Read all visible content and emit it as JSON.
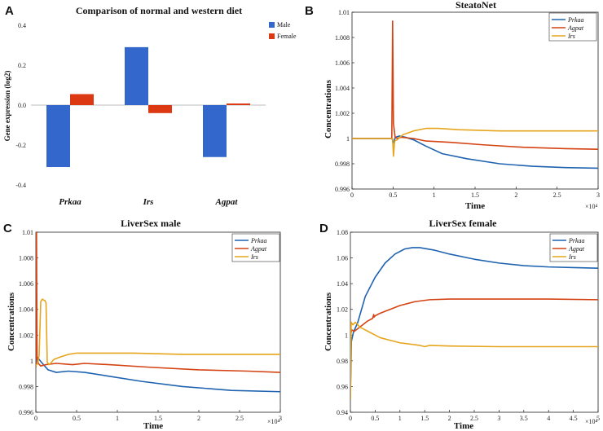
{
  "colors": {
    "blue": "#1f63b0",
    "red": "#d44313",
    "yellow": "#e6a51c",
    "barBlue": "#3367cc",
    "barRed": "#dc3912"
  },
  "chart_data": [
    {
      "panel": "A",
      "type": "bar",
      "title": "Comparison of normal and western diet",
      "ylabel": "Gene expression (log2)",
      "xlabel": "",
      "categories": [
        "Prkaa",
        "Irs",
        "Agpat"
      ],
      "series": [
        {
          "name": "Male",
          "values": [
            -0.31,
            0.29,
            -0.26
          ]
        },
        {
          "name": "Female",
          "values": [
            0.055,
            -0.04,
            0.008
          ]
        }
      ],
      "ylim": [
        -0.42,
        0.42
      ],
      "yticks": [
        "0.4",
        "0.2",
        "0.0",
        "-0.2",
        "-0.4"
      ],
      "legend": "top-right"
    },
    {
      "panel": "B",
      "type": "line",
      "title": "SteatoNet",
      "xlabel": "Time",
      "ylabel": "Concentrations",
      "xlim": [
        0,
        30000
      ],
      "ylim": [
        0.996,
        1.01
      ],
      "xticks": [
        "0",
        "0.5",
        "1",
        "1.5",
        "2",
        "2.5",
        "3"
      ],
      "yticks": [
        "1.01",
        "1.008",
        "1.006",
        "1.004",
        "1.002",
        "1",
        "0.998",
        "0.996"
      ],
      "xexp": "×10⁴",
      "legend": "top-right",
      "series": [
        {
          "name": "Prkaa",
          "x": [
            0,
            4900,
            5000,
            5300,
            5800,
            6500,
            7500,
            9000,
            11000,
            14000,
            18000,
            22000,
            26000,
            30000
          ],
          "y": [
            1.0,
            1.0,
            0.9996,
            1.0001,
            1.0002,
            1.0001,
            0.9999,
            0.9994,
            0.9988,
            0.9984,
            0.998,
            0.9978,
            0.9977,
            0.99765
          ]
        },
        {
          "name": "Agpat",
          "x": [
            0,
            4850,
            4950,
            5050,
            5250,
            5500,
            6000,
            7500,
            9000,
            12000,
            16000,
            21000,
            26000,
            30000
          ],
          "y": [
            1.0,
            1.0,
            1.0093,
            1.0012,
            1.0001,
            1.0,
            1.0001,
            1.0,
            0.9998,
            0.9997,
            0.9995,
            0.9993,
            0.9992,
            0.99915
          ]
        },
        {
          "name": "Irs",
          "x": [
            0,
            4950,
            5050,
            5200,
            5500,
            6200,
            7500,
            9000,
            10500,
            13000,
            18000,
            24000,
            30000
          ],
          "y": [
            1.0,
            1.0,
            0.9986,
            0.9998,
            0.9999,
            1.0003,
            1.0006,
            1.0008,
            1.0008,
            1.0007,
            1.0006,
            1.0006,
            1.0006
          ]
        }
      ]
    },
    {
      "panel": "C",
      "type": "line",
      "title": "LiverSex male",
      "xlabel": "Time",
      "ylabel": "Concentrations",
      "xlim": [
        0,
        30000
      ],
      "ylim": [
        0.996,
        1.01
      ],
      "xticks": [
        "0",
        "0.5",
        "1",
        "1.5",
        "2",
        "2.5",
        "3"
      ],
      "yticks": [
        "1.01",
        "1.008",
        "1.006",
        "1.004",
        "1.002",
        "1",
        "0.998",
        "0.996"
      ],
      "xexp": "×10⁴",
      "legend": "top-right",
      "series": [
        {
          "name": "Prkaa",
          "x": [
            0,
            150,
            400,
            800,
            1500,
            2500,
            4000,
            6000,
            9000,
            13000,
            18000,
            24000,
            30000
          ],
          "y": [
            0.9996,
            1.0003,
            1.0001,
            0.9998,
            0.9993,
            0.9991,
            0.9992,
            0.9991,
            0.9988,
            0.9984,
            0.998,
            0.9977,
            0.9976
          ]
        },
        {
          "name": "Agpat",
          "x": [
            0,
            80,
            150,
            300,
            600,
            1200,
            2500,
            4500,
            6000,
            9000,
            14000,
            20000,
            26000,
            30000
          ],
          "y": [
            0.9995,
            1.0101,
            1.0003,
            0.9998,
            0.9996,
            0.9997,
            0.9998,
            0.9997,
            0.9998,
            0.9997,
            0.9995,
            0.9993,
            0.9992,
            0.9991
          ]
        },
        {
          "name": "Irs",
          "x": [
            0,
            200,
            400,
            600,
            800,
            1000,
            1100,
            1250,
            1400,
            1600,
            1800,
            2200,
            3000,
            4000,
            5000,
            8000,
            12000,
            18000,
            24000,
            30000
          ],
          "y": [
            0.9996,
            0.9998,
            1.0004,
            1.0046,
            1.0048,
            1.0047,
            1.0047,
            1.0045,
            0.9999,
            0.9997,
            0.9998,
            1.0001,
            1.0003,
            1.0005,
            1.0006,
            1.0006,
            1.0006,
            1.0005,
            1.0005,
            1.0005
          ]
        }
      ]
    },
    {
      "panel": "D",
      "type": "line",
      "title": "LiverSex female",
      "xlabel": "Time",
      "ylabel": "Concentrations",
      "xlim": [
        0,
        50000
      ],
      "ylim": [
        0.94,
        1.08
      ],
      "xticks": [
        "0",
        "0.5",
        "1",
        "1.5",
        "2",
        "2.5",
        "3",
        "3.5",
        "4",
        "4.5",
        "5"
      ],
      "yticks": [
        "1.08",
        "1.06",
        "1.04",
        "1.02",
        "1",
        "0.98",
        "0.96",
        "0.94"
      ],
      "xexp": "×10⁴",
      "legend": "top-right",
      "series": [
        {
          "name": "Prkaa",
          "x": [
            0,
            200,
            600,
            1500,
            3000,
            5000,
            7000,
            9000,
            11000,
            12500,
            14000,
            17000,
            20000,
            25000,
            30000,
            35000,
            40000,
            45000,
            50000
          ],
          "y": [
            0.95,
            0.995,
            1.002,
            1.01,
            1.03,
            1.045,
            1.056,
            1.063,
            1.067,
            1.068,
            1.068,
            1.066,
            1.063,
            1.059,
            1.056,
            1.054,
            1.053,
            1.0525,
            1.052
          ]
        },
        {
          "name": "Agpat",
          "x": [
            0,
            300,
            800,
            1500,
            2500,
            3500,
            4500,
            4700,
            4800,
            5000,
            6000,
            8000,
            10000,
            13000,
            16000,
            20000,
            25000,
            30000,
            40000,
            50000
          ],
          "y": [
            1.0,
            1.004,
            1.003,
            1.005,
            1.008,
            1.011,
            1.013,
            1.016,
            1.014,
            1.015,
            1.017,
            1.02,
            1.023,
            1.026,
            1.0275,
            1.028,
            1.028,
            1.028,
            1.028,
            1.0275
          ]
        },
        {
          "name": "Irs",
          "x": [
            0,
            150,
            500,
            1000,
            2000,
            3000,
            4000,
            5000,
            6000,
            8000,
            10000,
            12000,
            14000,
            15000,
            15500,
            16000,
            20000,
            30000,
            40000,
            50000
          ],
          "y": [
            0.95,
            1.01,
            1.008,
            1.01,
            1.006,
            1.004,
            1.002,
            1.0,
            0.998,
            0.996,
            0.994,
            0.993,
            0.992,
            0.991,
            0.9915,
            0.992,
            0.9915,
            0.991,
            0.991,
            0.991
          ]
        }
      ]
    }
  ]
}
